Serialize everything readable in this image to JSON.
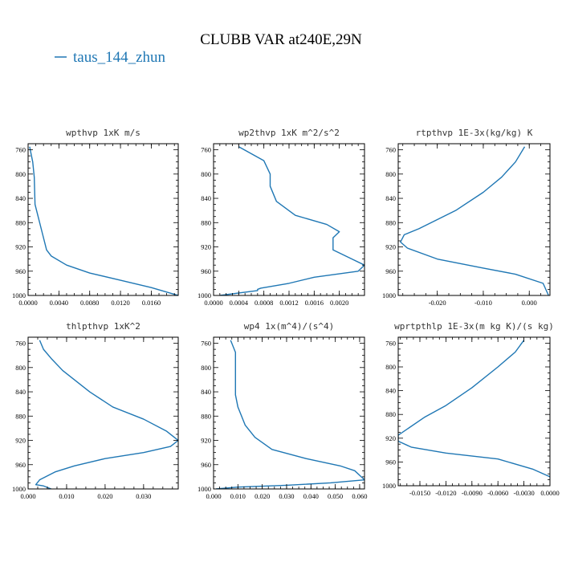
{
  "figure": {
    "title": "CLUBB VAR at240E,29N",
    "legend_label": "taus_144_zhun",
    "legend_color": "#1f77b4",
    "line_color": "#1f77b4"
  },
  "chart_data": [
    {
      "type": "line",
      "title": "wpthvp  1xK m/s",
      "xlim": [
        0.0,
        0.0195
      ],
      "ylim": [
        1000,
        750
      ],
      "xticks": [
        "0.0000",
        "0.0040",
        "0.0080",
        "0.0120",
        "0.0160"
      ],
      "xtick_values": [
        0.0,
        0.004,
        0.008,
        0.012,
        0.016
      ],
      "yticks": [
        "760",
        "800",
        "840",
        "880",
        "920",
        "960",
        "1000"
      ],
      "ytick_values": [
        760,
        800,
        840,
        880,
        920,
        960,
        1000
      ],
      "series": [
        {
          "x": [
            0.0002,
            0.0006,
            0.0008,
            0.0009,
            0.0012,
            0.0018,
            0.0024,
            0.003,
            0.005,
            0.008,
            0.012,
            0.016,
            0.0195
          ],
          "y": [
            755,
            780,
            805,
            850,
            865,
            895,
            925,
            935,
            950,
            963,
            975,
            987,
            1000
          ]
        }
      ]
    },
    {
      "type": "line",
      "title": "wp2thvp  1xK m^2/s^2",
      "xlim": [
        0.0,
        0.0024
      ],
      "ylim": [
        1000,
        750
      ],
      "xticks": [
        "0.0000",
        "0.0004",
        "0.0008",
        "0.0012",
        "0.0016",
        "0.0020"
      ],
      "xtick_values": [
        0.0,
        0.0004,
        0.0008,
        0.0012,
        0.0016,
        0.002
      ],
      "yticks": [
        "760",
        "800",
        "840",
        "880",
        "920",
        "960",
        "1000"
      ],
      "ytick_values": [
        760,
        800,
        840,
        880,
        920,
        960,
        1000
      ],
      "series": [
        {
          "x": [
            0.0004,
            0.0008,
            0.0009,
            0.0009,
            0.001,
            0.0013,
            0.0018,
            0.002,
            0.0019,
            0.0019,
            0.0022,
            0.0024,
            0.0023,
            0.0016,
            0.0012,
            0.00075,
            0.0007,
            0.0007,
            0.0001
          ],
          "y": [
            755,
            778,
            800,
            820,
            845,
            868,
            883,
            895,
            905,
            925,
            940,
            950,
            960,
            970,
            980,
            988,
            990,
            992,
            1000
          ]
        }
      ]
    },
    {
      "type": "line",
      "title": "rtpthvp  1E-3x(kg/kg) K",
      "xlim": [
        -0.0285,
        0.0045
      ],
      "ylim": [
        1000,
        750
      ],
      "xticks": [
        "-0.020",
        "-0.010",
        "0.000"
      ],
      "xtick_values": [
        -0.02,
        -0.01,
        0.0
      ],
      "yticks": [
        "760",
        "800",
        "840",
        "880",
        "920",
        "960",
        "1000"
      ],
      "ytick_values": [
        760,
        800,
        840,
        880,
        920,
        960,
        1000
      ],
      "series": [
        {
          "x": [
            -0.001,
            -0.003,
            -0.006,
            -0.01,
            -0.016,
            -0.024,
            -0.0272,
            -0.028,
            -0.0265,
            -0.02,
            -0.01,
            -0.003,
            0.003,
            0.0042
          ],
          "y": [
            755,
            780,
            805,
            830,
            860,
            890,
            900,
            912,
            922,
            940,
            955,
            965,
            980,
            1000
          ]
        }
      ]
    },
    {
      "type": "line",
      "title": "thlpthvp  1xK^2",
      "xlim": [
        0.0,
        0.039
      ],
      "ylim": [
        1000,
        750
      ],
      "xticks": [
        "0.000",
        "0.010",
        "0.020",
        "0.030"
      ],
      "xtick_values": [
        0.0,
        0.01,
        0.02,
        0.03
      ],
      "yticks": [
        "760",
        "800",
        "840",
        "880",
        "920",
        "960",
        "1000"
      ],
      "ytick_values": [
        760,
        800,
        840,
        880,
        920,
        960,
        1000
      ],
      "series": [
        {
          "x": [
            0.003,
            0.004,
            0.006,
            0.009,
            0.016,
            0.022,
            0.03,
            0.036,
            0.039,
            0.037,
            0.03,
            0.02,
            0.012,
            0.007,
            0.003,
            0.002,
            0.004,
            0.006
          ],
          "y": [
            755,
            770,
            785,
            805,
            840,
            865,
            885,
            905,
            920,
            930,
            940,
            950,
            962,
            972,
            985,
            993,
            995,
            1000
          ]
        }
      ]
    },
    {
      "type": "line",
      "title": "wp4  1x(m^4)/(s^4)",
      "xlim": [
        0.0,
        0.062
      ],
      "ylim": [
        1000,
        750
      ],
      "xticks": [
        "0.000",
        "0.010",
        "0.020",
        "0.030",
        "0.040",
        "0.050",
        "0.060"
      ],
      "xtick_values": [
        0.0,
        0.01,
        0.02,
        0.03,
        0.04,
        0.05,
        0.06
      ],
      "yticks": [
        "760",
        "800",
        "840",
        "880",
        "920",
        "960",
        "1000"
      ],
      "ytick_values": [
        760,
        800,
        840,
        880,
        920,
        960,
        1000
      ],
      "series": [
        {
          "x": [
            0.007,
            0.009,
            0.009,
            0.009,
            0.01,
            0.013,
            0.017,
            0.024,
            0.038,
            0.052,
            0.058,
            0.062,
            0.048,
            0.03,
            0.01,
            0.001
          ],
          "y": [
            755,
            775,
            810,
            845,
            865,
            895,
            915,
            935,
            950,
            962,
            970,
            985,
            990,
            994,
            997,
            1000
          ]
        }
      ]
    },
    {
      "type": "line",
      "title": "wprtpthlp  1E-3x(m kg K)/(s kg)",
      "xlim": [
        -0.0175,
        0.0
      ],
      "ylim": [
        1000,
        750
      ],
      "xticks": [
        "-0.0150",
        "-0.0120",
        "-0.0090",
        "-0.0060",
        "-0.0030",
        "0.0000"
      ],
      "xtick_values": [
        -0.015,
        -0.012,
        -0.009,
        -0.006,
        -0.003,
        0.0
      ],
      "yticks": [
        "760",
        "800",
        "840",
        "880",
        "920",
        "960",
        "1000"
      ],
      "ytick_values": [
        760,
        800,
        840,
        880,
        920,
        960,
        1000
      ],
      "series": [
        {
          "x": [
            -0.003,
            -0.004,
            -0.006,
            -0.009,
            -0.012,
            -0.0145,
            -0.0175,
            -0.0175,
            -0.016,
            -0.012,
            -0.006,
            -0.002,
            0.0
          ],
          "y": [
            755,
            775,
            800,
            835,
            865,
            885,
            915,
            925,
            935,
            945,
            955,
            972,
            985
          ]
        }
      ]
    }
  ]
}
